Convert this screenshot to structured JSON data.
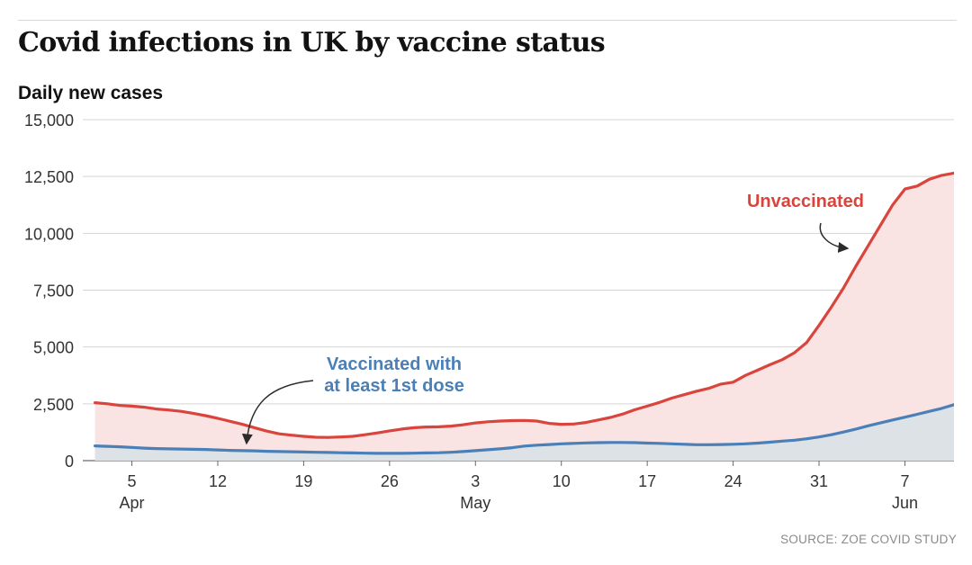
{
  "header": {
    "title": "Covid infections in UK by vaccine status",
    "subtitle": "Daily new cases"
  },
  "footer": {
    "source": "SOURCE: ZOE COVID STUDY"
  },
  "colors": {
    "unvaccinated_line": "#d9453d",
    "unvaccinated_fill": "#f9e3e3",
    "vaccinated_line": "#4a7fb8",
    "vaccinated_fill": "#dde2e6",
    "grid": "#d5d5d5",
    "text": "#333333"
  },
  "chart_data": {
    "type": "area",
    "title": "Covid infections in UK by vaccine status",
    "ylabel": "Daily new cases",
    "xlabel": "",
    "ylim": [
      0,
      15000
    ],
    "grid": true,
    "x_day_range": [
      0,
      71
    ],
    "x_note": "days since 1 April",
    "yticks": [
      {
        "value": 0,
        "label": "0"
      },
      {
        "value": 2500,
        "label": "2,500"
      },
      {
        "value": 5000,
        "label": "5,000"
      },
      {
        "value": 7500,
        "label": "7,500"
      },
      {
        "value": 10000,
        "label": "10,000"
      },
      {
        "value": 12500,
        "label": "12,500"
      },
      {
        "value": 15000,
        "label": "15,000"
      }
    ],
    "xticks": [
      {
        "day": 4,
        "label": "5"
      },
      {
        "day": 11,
        "label": "12"
      },
      {
        "day": 18,
        "label": "19"
      },
      {
        "day": 25,
        "label": "26"
      },
      {
        "day": 32,
        "label": "3"
      },
      {
        "day": 39,
        "label": "10"
      },
      {
        "day": 46,
        "label": "17"
      },
      {
        "day": 53,
        "label": "24"
      },
      {
        "day": 60,
        "label": "31"
      },
      {
        "day": 67,
        "label": "7"
      }
    ],
    "month_labels": [
      {
        "day": 4,
        "label": "Apr"
      },
      {
        "day": 32,
        "label": "May"
      },
      {
        "day": 67,
        "label": "Jun"
      }
    ],
    "series": [
      {
        "name": "Unvaccinated",
        "key": "unvaccinated",
        "x": [
          1,
          2,
          3,
          4,
          5,
          6,
          7,
          8,
          9,
          10,
          11,
          12,
          13,
          14,
          15,
          16,
          17,
          18,
          19,
          20,
          21,
          22,
          23,
          24,
          25,
          26,
          27,
          28,
          29,
          30,
          31,
          32,
          33,
          34,
          35,
          36,
          37,
          38,
          39,
          40,
          41,
          42,
          43,
          44,
          45,
          46,
          47,
          48,
          49,
          50,
          51,
          52,
          53,
          54,
          55,
          56,
          57,
          58,
          59,
          60,
          61,
          62,
          63,
          64,
          65,
          66,
          67,
          68,
          69,
          70,
          71
        ],
        "values": [
          2550,
          2500,
          2430,
          2400,
          2350,
          2270,
          2230,
          2170,
          2080,
          1980,
          1860,
          1730,
          1600,
          1450,
          1300,
          1180,
          1120,
          1070,
          1030,
          1020,
          1040,
          1070,
          1140,
          1220,
          1310,
          1390,
          1450,
          1480,
          1490,
          1520,
          1580,
          1660,
          1710,
          1740,
          1760,
          1770,
          1740,
          1640,
          1600,
          1610,
          1680,
          1790,
          1900,
          2050,
          2240,
          2400,
          2560,
          2750,
          2900,
          3050,
          3180,
          3370,
          3450,
          3750,
          3980,
          4220,
          4440,
          4750,
          5200,
          5950,
          6750,
          7600,
          8550,
          9450,
          10350,
          11250,
          11950,
          12080,
          12380,
          12550,
          12650
        ]
      },
      {
        "name": "Vaccinated with at least 1st dose",
        "key": "vaccinated",
        "x": [
          1,
          2,
          3,
          4,
          5,
          6,
          7,
          8,
          9,
          10,
          11,
          12,
          13,
          14,
          15,
          16,
          17,
          18,
          19,
          20,
          21,
          22,
          23,
          24,
          25,
          26,
          27,
          28,
          29,
          30,
          31,
          32,
          33,
          34,
          35,
          36,
          37,
          38,
          39,
          40,
          41,
          42,
          43,
          44,
          45,
          46,
          47,
          48,
          49,
          50,
          51,
          52,
          53,
          54,
          55,
          56,
          57,
          58,
          59,
          60,
          61,
          62,
          63,
          64,
          65,
          66,
          67,
          68,
          69,
          70,
          71
        ],
        "values": [
          650,
          630,
          610,
          580,
          550,
          530,
          520,
          510,
          500,
          490,
          470,
          450,
          440,
          430,
          410,
          400,
          390,
          380,
          370,
          360,
          350,
          340,
          330,
          320,
          320,
          320,
          330,
          340,
          350,
          370,
          400,
          440,
          480,
          520,
          570,
          640,
          680,
          710,
          740,
          760,
          780,
          790,
          800,
          800,
          790,
          770,
          760,
          740,
          720,
          700,
          700,
          710,
          720,
          740,
          770,
          810,
          860,
          900,
          960,
          1040,
          1140,
          1260,
          1390,
          1530,
          1660,
          1790,
          1910,
          2040,
          2170,
          2300,
          2460
        ]
      }
    ],
    "annotations": [
      {
        "key": "unvaccinated",
        "lines": [
          "Unvaccinated"
        ]
      },
      {
        "key": "vaccinated",
        "lines": [
          "Vaccinated with",
          "at least 1st dose"
        ]
      }
    ]
  }
}
